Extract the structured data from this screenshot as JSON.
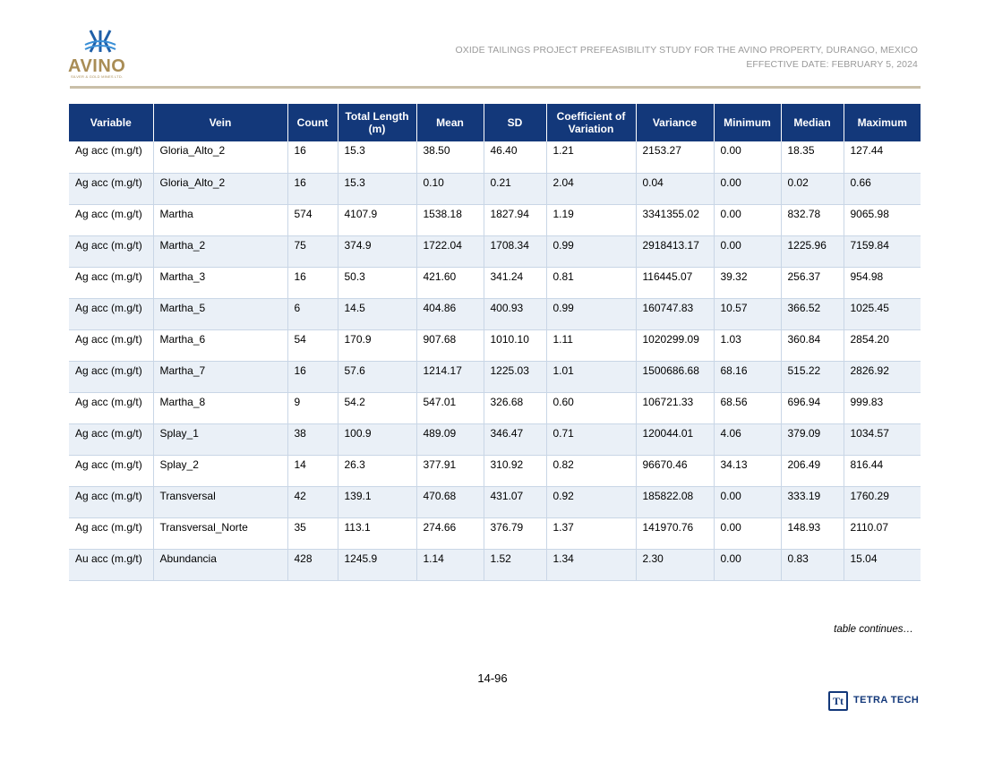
{
  "header": {
    "logo_text": "AVINO",
    "logo_subtext": "SILVER & GOLD MINES LTD.",
    "title_line1": "OXIDE TAILINGS PROJECT PREFEASIBILITY STUDY FOR THE AVINO PROPERTY, DURANGO, MEXICO",
    "title_line2": "EFFECTIVE DATE: FEBRUARY 5, 2024"
  },
  "table": {
    "columns": [
      "Variable",
      "Vein",
      "Count",
      "Total Length (m)",
      "Mean",
      "SD",
      "Coefficient of Variation",
      "Variance",
      "Minimum",
      "Median",
      "Maximum"
    ],
    "rows": [
      [
        "Ag acc (m.g/t)",
        "Gloria_Alto_2",
        "16",
        "15.3",
        "38.50",
        "46.40",
        "1.21",
        "2153.27",
        "0.00",
        "18.35",
        "127.44"
      ],
      [
        "Ag acc (m.g/t)",
        "Gloria_Alto_2",
        "16",
        "15.3",
        "0.10",
        "0.21",
        "2.04",
        "0.04",
        "0.00",
        "0.02",
        "0.66"
      ],
      [
        "Ag acc (m.g/t)",
        "Martha",
        "574",
        "4107.9",
        "1538.18",
        "1827.94",
        "1.19",
        "3341355.02",
        "0.00",
        "832.78",
        "9065.98"
      ],
      [
        "Ag acc (m.g/t)",
        "Martha_2",
        "75",
        "374.9",
        "1722.04",
        "1708.34",
        "0.99",
        "2918413.17",
        "0.00",
        "1225.96",
        "7159.84"
      ],
      [
        "Ag acc (m.g/t)",
        "Martha_3",
        "16",
        "50.3",
        "421.60",
        "341.24",
        "0.81",
        "116445.07",
        "39.32",
        "256.37",
        "954.98"
      ],
      [
        "Ag acc (m.g/t)",
        "Martha_5",
        "6",
        "14.5",
        "404.86",
        "400.93",
        "0.99",
        "160747.83",
        "10.57",
        "366.52",
        "1025.45"
      ],
      [
        "Ag acc (m.g/t)",
        "Martha_6",
        "54",
        "170.9",
        "907.68",
        "1010.10",
        "1.11",
        "1020299.09",
        "1.03",
        "360.84",
        "2854.20"
      ],
      [
        "Ag acc (m.g/t)",
        "Martha_7",
        "16",
        "57.6",
        "1214.17",
        "1225.03",
        "1.01",
        "1500686.68",
        "68.16",
        "515.22",
        "2826.92"
      ],
      [
        "Ag acc (m.g/t)",
        "Martha_8",
        "9",
        "54.2",
        "547.01",
        "326.68",
        "0.60",
        "106721.33",
        "68.56",
        "696.94",
        "999.83"
      ],
      [
        "Ag acc (m.g/t)",
        "Splay_1",
        "38",
        "100.9",
        "489.09",
        "346.47",
        "0.71",
        "120044.01",
        "4.06",
        "379.09",
        "1034.57"
      ],
      [
        "Ag acc (m.g/t)",
        "Splay_2",
        "14",
        "26.3",
        "377.91",
        "310.92",
        "0.82",
        "96670.46",
        "34.13",
        "206.49",
        "816.44"
      ],
      [
        "Ag acc (m.g/t)",
        "Transversal",
        "42",
        "139.1",
        "470.68",
        "431.07",
        "0.92",
        "185822.08",
        "0.00",
        "333.19",
        "1760.29"
      ],
      [
        "Ag acc (m.g/t)",
        "Transversal_Norte",
        "35",
        "113.1",
        "274.66",
        "376.79",
        "1.37",
        "141970.76",
        "0.00",
        "148.93",
        "2110.07"
      ],
      [
        "Au acc (m.g/t)",
        "Abundancia",
        "428",
        "1245.9",
        "1.14",
        "1.52",
        "1.34",
        "2.30",
        "0.00",
        "0.83",
        "15.04"
      ]
    ]
  },
  "footer": {
    "continues": "table continues…",
    "page_number": "14-96",
    "brand_mark": "Tt",
    "brand_name": "TETRA TECH"
  },
  "colors": {
    "header_fill": "#13387a",
    "alt_row": "#eaf0f7",
    "logo_gold": "#a98d56",
    "logo_blue": "#1f5fa8"
  }
}
